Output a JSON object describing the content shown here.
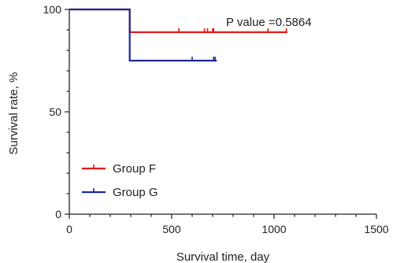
{
  "chart_data": {
    "type": "line",
    "subtype": "kaplan-meier",
    "xlabel": "Survival time, day",
    "ylabel": "Survival rate, %",
    "xlim": [
      0,
      1500
    ],
    "ylim": [
      0,
      100
    ],
    "x_ticks": [
      0,
      500,
      1000,
      1500
    ],
    "y_ticks": [
      0,
      50,
      100
    ],
    "x_tick_labels": [
      "0",
      "500",
      "1000",
      "1500"
    ],
    "y_tick_labels": [
      "0",
      "50",
      "100"
    ],
    "grid": false,
    "legend_position": "bottom-left",
    "annotation": "P value =0.5864",
    "series": [
      {
        "name": "Group F",
        "color": "#e8191b",
        "steps": [
          [
            0,
            100
          ],
          [
            295,
            100
          ],
          [
            295,
            88.9
          ],
          [
            1065,
            88.9
          ]
        ],
        "censored": [
          [
            535,
            88.9
          ],
          [
            660,
            88.9
          ],
          [
            675,
            88.9
          ],
          [
            700,
            88.9
          ],
          [
            705,
            88.9
          ],
          [
            970,
            88.9
          ],
          [
            1060,
            88.9
          ]
        ]
      },
      {
        "name": "Group G",
        "color": "#1a2a9a",
        "steps": [
          [
            0,
            100
          ],
          [
            295,
            100
          ],
          [
            295,
            75
          ],
          [
            720,
            75
          ]
        ],
        "censored": [
          [
            600,
            75
          ],
          [
            705,
            75
          ],
          [
            712,
            75
          ]
        ]
      }
    ]
  }
}
